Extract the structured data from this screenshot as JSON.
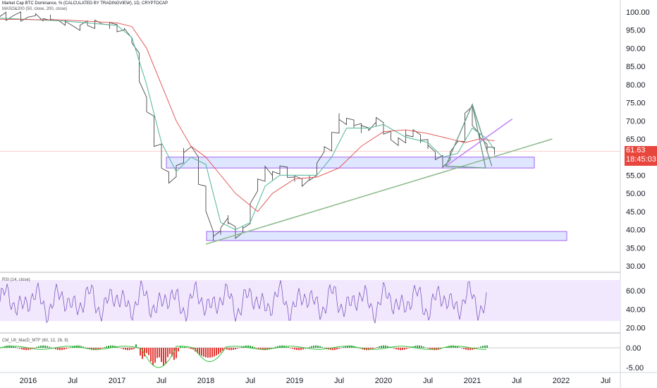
{
  "header": {
    "title": "Market Cap BTC Dominance, % (CALCULATED BY TRADINGVIEW), 1D, CRYPTOCAP",
    "ma_label": "MASO&200 (50, close, 200, close)"
  },
  "price_axis": {
    "ticks": [
      "100.00",
      "95.00",
      "90.00",
      "85.00",
      "80.00",
      "75.00",
      "70.00",
      "65.00",
      "60.00",
      "55.00",
      "50.00",
      "45.00",
      "40.00",
      "35.00",
      "30.00"
    ],
    "last_price": "61.63",
    "countdown": "18:45:03",
    "last_price_color": "#e8453c"
  },
  "rsi": {
    "label": "RSI (14, close)",
    "ticks": [
      "60.00",
      "40.00",
      "20.00"
    ],
    "band_color": "#9c7dd9"
  },
  "macd": {
    "label": "CM_Ult_MacD_MTF (60, 12, 26, 9)",
    "ticks": [
      "0.00",
      "-5.00"
    ]
  },
  "time_axis": {
    "labels": [
      "2016",
      "Jul",
      "2017",
      "Jul",
      "2018",
      "Jul",
      "2019",
      "Jul",
      "2020",
      "Jul",
      "2021",
      "Jul",
      "2022",
      "Jul"
    ]
  },
  "colors": {
    "price": "#4a4a4a",
    "ma50": "#4fb59a",
    "ma200": "#e24a4a",
    "trendline": "#8fbc8f",
    "zone_fill": "#dfe6ff",
    "zone_border": "#a463f2",
    "wedge": "#6b9c8a",
    "purple_line": "#c58af9",
    "rsi_line": "#7e57c2",
    "macd_up": "#2e9e3e",
    "macd_down": "#e53935"
  },
  "chart_data": {
    "type": "line",
    "title": "Market Cap BTC Dominance, % (CALCULATED BY TRADINGVIEW), 1D, CRYPTOCAP",
    "ylim": [
      28,
      102
    ],
    "x": [
      "2015-09",
      "2016-01",
      "2016-06",
      "2016-10",
      "2017-01",
      "2017-03",
      "2017-05",
      "2017-06",
      "2017-07",
      "2017-09",
      "2017-11",
      "2017-12",
      "2018-01",
      "2018-02",
      "2018-04",
      "2018-06",
      "2018-08",
      "2018-10",
      "2019-01",
      "2019-04",
      "2019-06",
      "2019-09",
      "2020-01",
      "2020-04",
      "2020-07",
      "2020-09",
      "2020-11",
      "2021-01",
      "2021-02",
      "2021-04",
      "2021-05"
    ],
    "series": [
      {
        "name": "Price",
        "values": [
          98.5,
          98.0,
          96.5,
          96.0,
          96.5,
          92.0,
          75.0,
          62.0,
          52.0,
          56.0,
          62.0,
          66.0,
          50.0,
          36.0,
          40.0,
          43.0,
          52.0,
          57.0,
          55.0,
          53.0,
          62.0,
          72.0,
          69.0,
          66.0,
          64.0,
          58.0,
          62.0,
          70.0,
          65.0,
          60.0,
          58.0
        ]
      }
    ],
    "annotations": [
      "RSI (14, close)",
      "CM_Ult_MacD_MTF (60, 12, 26, 9)"
    ]
  }
}
